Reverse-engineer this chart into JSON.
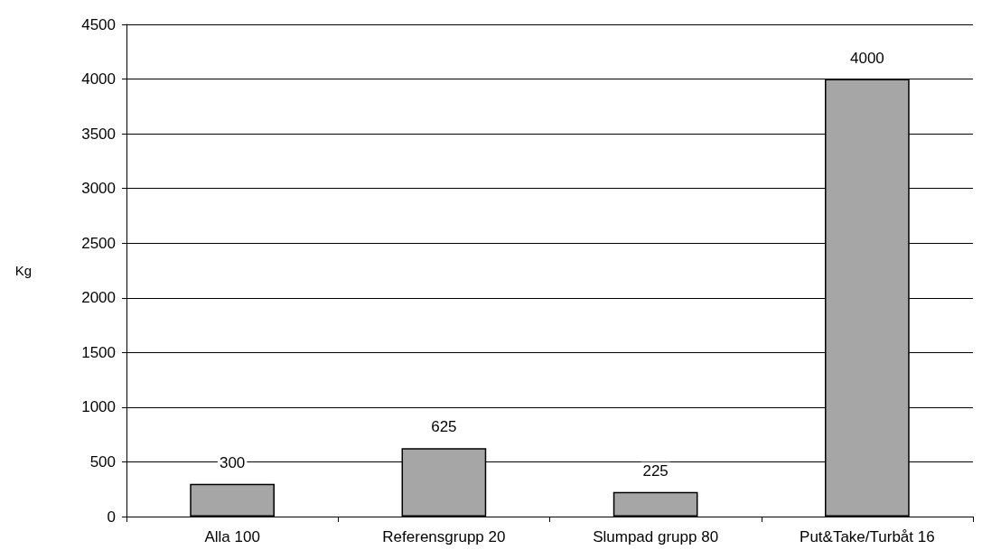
{
  "chart_data": {
    "type": "bar",
    "ylabel": "Kg",
    "categories": [
      "Alla 100",
      "Referensgrupp 20",
      "Slumpad grupp 80",
      "Put&Take/Turbåt 16"
    ],
    "values": [
      300,
      625,
      225,
      4000
    ],
    "color": "#a6a6a6",
    "ylim": [
      0,
      4500
    ],
    "yticks": [
      0,
      500,
      1000,
      1500,
      2000,
      2500,
      3000,
      3500,
      4000,
      4500
    ],
    "grid": "y",
    "data_labels": true
  }
}
